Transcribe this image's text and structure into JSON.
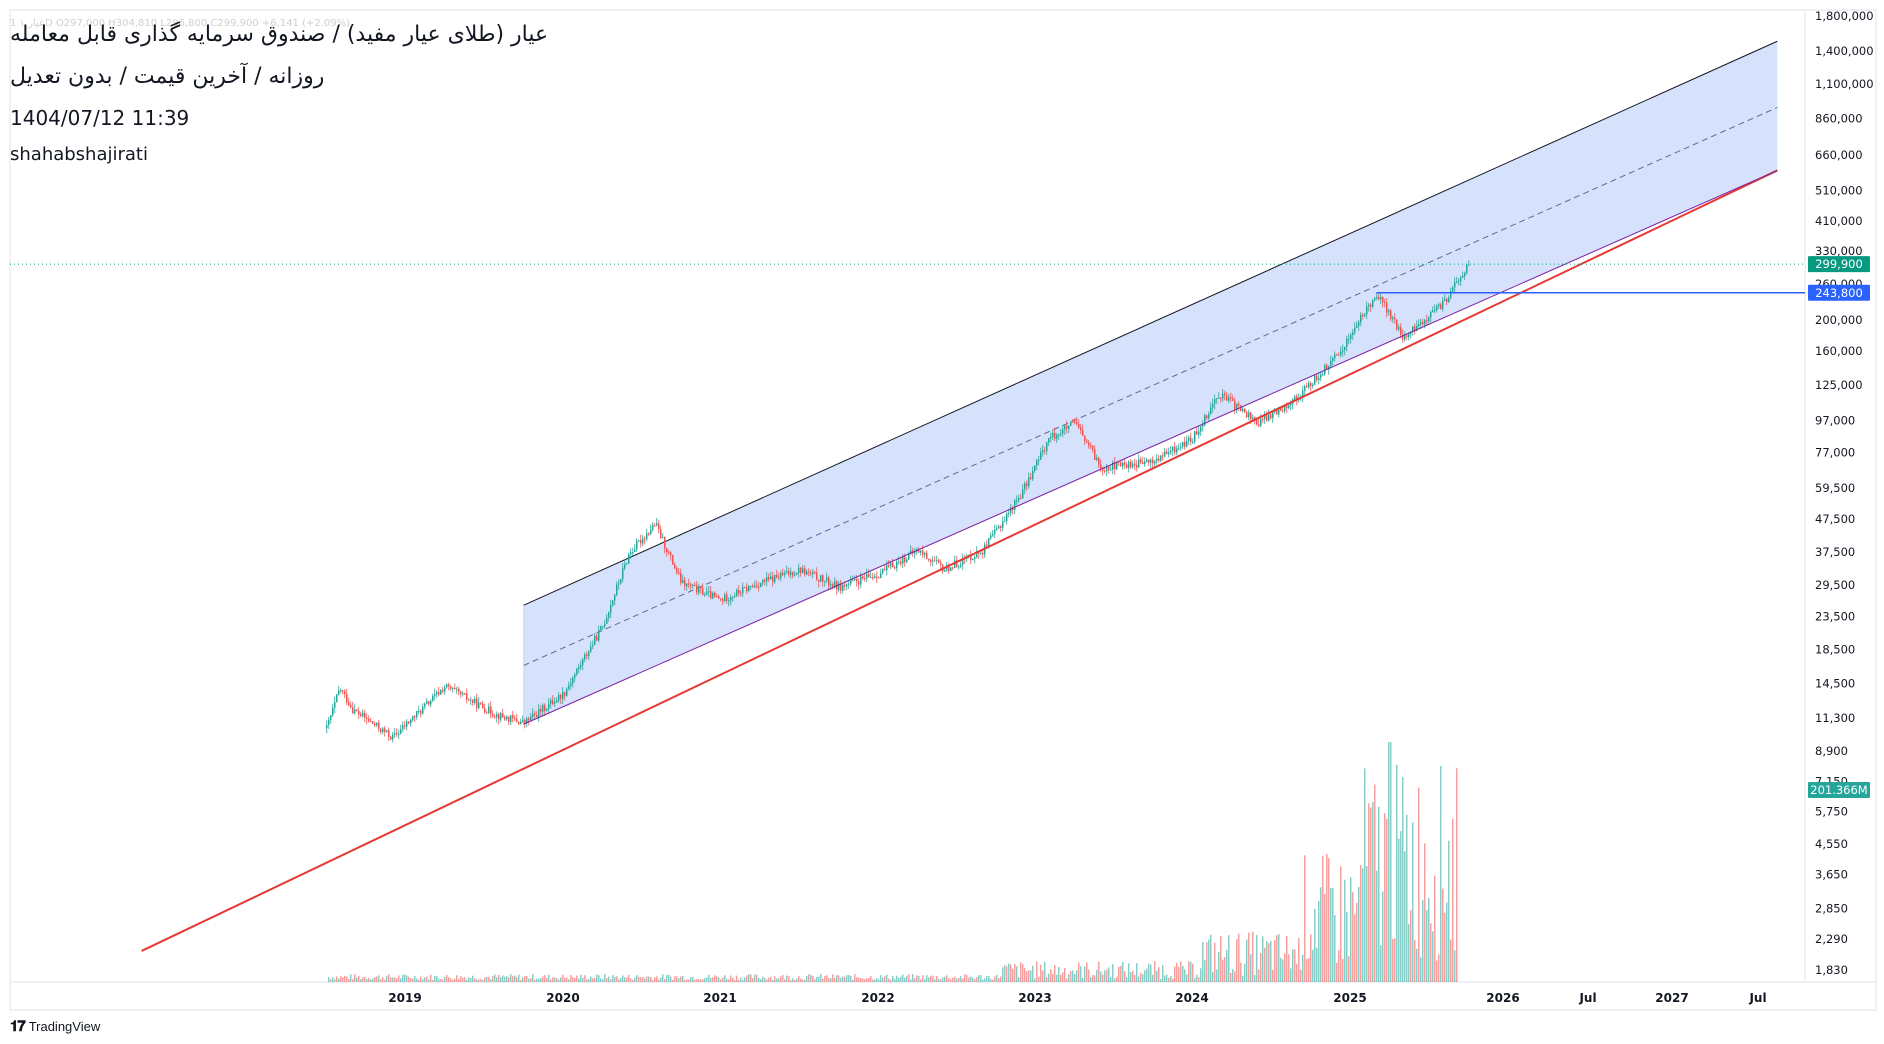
{
  "header": {
    "title": "عیار (طلای عیار مفید) / صندوق سرمایه گذاری قابل معامله",
    "subtitle": "روزانه / آخرین قیمت / بدون تعدیل",
    "datetime": "1404/07/12  11:39",
    "author": "shahabshajirati",
    "ohlc": "1  عیار  ۱D  O297,000  H304,810  L296,800  C299,900  +6,141 (+2.09%)"
  },
  "branding": {
    "logo_icon": "tradingview-logo-icon",
    "name": "TradingView"
  },
  "colors": {
    "up": "#26a69a",
    "down": "#ef5350",
    "channel_fill": "#cfdcfc",
    "support_line": "#e53935",
    "support_line_inner": "#7b1fa2",
    "upper_line": "#131722",
    "level_line": "#2962ff",
    "last_price_line": "#089981"
  },
  "chart_data": {
    "type": "candlestick",
    "scale": "log",
    "x_axis": [
      "2019",
      "2020",
      "2021",
      "2022",
      "2023",
      "2024",
      "2025",
      "2026",
      "Jul",
      "2027",
      "Jul"
    ],
    "y_axis": [
      "1,800,000",
      "1,400,000",
      "1,100,000",
      "860,000",
      "660,000",
      "510,000",
      "410,000",
      "330,000",
      "260,000",
      "200,000",
      "160,000",
      "125,000",
      "97,000",
      "77,000",
      "59,500",
      "47,500",
      "37,500",
      "29,500",
      "23,500",
      "18,500",
      "14,500",
      "11,300",
      "8,900",
      "7,150",
      "5,750",
      "4,550",
      "3,650",
      "2,850",
      "2,290",
      "1,830"
    ],
    "ylim": [
      1830,
      1800000
    ],
    "price_series": [
      {
        "date": "2018-07",
        "close": 10500
      },
      {
        "date": "2018-08",
        "close": 14000
      },
      {
        "date": "2018-09",
        "close": 12000
      },
      {
        "date": "2018-12",
        "close": 9800
      },
      {
        "date": "2019-04",
        "close": 14200
      },
      {
        "date": "2019-08",
        "close": 11500
      },
      {
        "date": "2019-10",
        "close": 10900
      },
      {
        "date": "2020-01",
        "close": 13500
      },
      {
        "date": "2020-04",
        "close": 22000
      },
      {
        "date": "2020-06",
        "close": 37000
      },
      {
        "date": "2020-08",
        "close": 46000
      },
      {
        "date": "2020-10",
        "close": 30000
      },
      {
        "date": "2021-01",
        "close": 26500
      },
      {
        "date": "2021-04",
        "close": 30000
      },
      {
        "date": "2021-07",
        "close": 33000
      },
      {
        "date": "2021-10",
        "close": 29000
      },
      {
        "date": "2022-01",
        "close": 32000
      },
      {
        "date": "2022-04",
        "close": 38000
      },
      {
        "date": "2022-06",
        "close": 33000
      },
      {
        "date": "2022-09",
        "close": 38000
      },
      {
        "date": "2022-12",
        "close": 58000
      },
      {
        "date": "2023-02",
        "close": 85000
      },
      {
        "date": "2023-04",
        "close": 95000
      },
      {
        "date": "2023-06",
        "close": 69000
      },
      {
        "date": "2023-10",
        "close": 72000
      },
      {
        "date": "2024-01",
        "close": 85000
      },
      {
        "date": "2024-03",
        "close": 118000
      },
      {
        "date": "2024-06",
        "close": 95000
      },
      {
        "date": "2024-09",
        "close": 115000
      },
      {
        "date": "2024-12",
        "close": 155000
      },
      {
        "date": "2025-03",
        "close": 243800
      },
      {
        "date": "2025-05",
        "close": 175000
      },
      {
        "date": "2025-08",
        "close": 225000
      },
      {
        "date": "2025-10",
        "close": 299900
      }
    ],
    "volume_note": "volume histogram rising sharply in 2024–2025",
    "channel": {
      "lower_start": {
        "date": "2019-10",
        "value": 10800
      },
      "lower_end": {
        "date": "2027-09",
        "value": 590000
      },
      "upper_start": {
        "date": "2019-10",
        "value": 25500
      },
      "upper_end": {
        "date": "2027-09",
        "value": 1500000
      },
      "median_start": {
        "date": "2019-10",
        "value": 16500
      },
      "median_end": {
        "date": "2027-09",
        "value": 930000
      }
    },
    "support_extension": {
      "start": {
        "date": "2017-05",
        "value": 2100
      }
    },
    "horizontal_level": {
      "start": {
        "date": "2025-03",
        "value": 243800
      }
    },
    "last_price": {
      "value": 299900,
      "label": "299,900"
    },
    "level_label": "243,800",
    "volume_label": "201.366M"
  }
}
